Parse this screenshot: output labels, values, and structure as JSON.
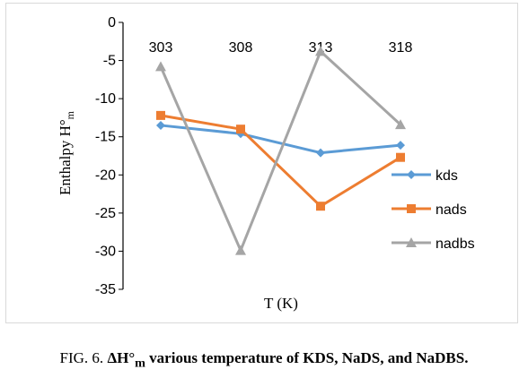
{
  "chart_data": {
    "type": "line",
    "categories": [
      "303",
      "308",
      "313",
      "318"
    ],
    "series": [
      {
        "name": "kds",
        "values": [
          -13.5,
          -14.6,
          -17.1,
          -16.1
        ],
        "color": "#5B9BD5",
        "marker": "diamond"
      },
      {
        "name": "nads",
        "values": [
          -12.2,
          -14.0,
          -24.1,
          -17.7
        ],
        "color": "#ED7D31",
        "marker": "square"
      },
      {
        "name": "nadbs",
        "values": [
          -5.8,
          -29.9,
          -3.8,
          -13.4
        ],
        "color": "#A5A5A5",
        "marker": "triangle"
      }
    ],
    "ylim": [
      -35,
      0
    ],
    "yticks": [
      0,
      -5,
      -10,
      -15,
      -20,
      -25,
      -30,
      -35
    ],
    "xlabel": "T (K)",
    "ylabel_main": "Enthalpy H°",
    "ylabel_sub": "m",
    "legend_position": "bottom-right",
    "grid": false
  },
  "caption": {
    "prefix": "FIG. 6. ",
    "delta_h": "ΔH°",
    "sub": "m",
    "rest": " various temperature of KDS, NaDS, and NaDBS."
  }
}
